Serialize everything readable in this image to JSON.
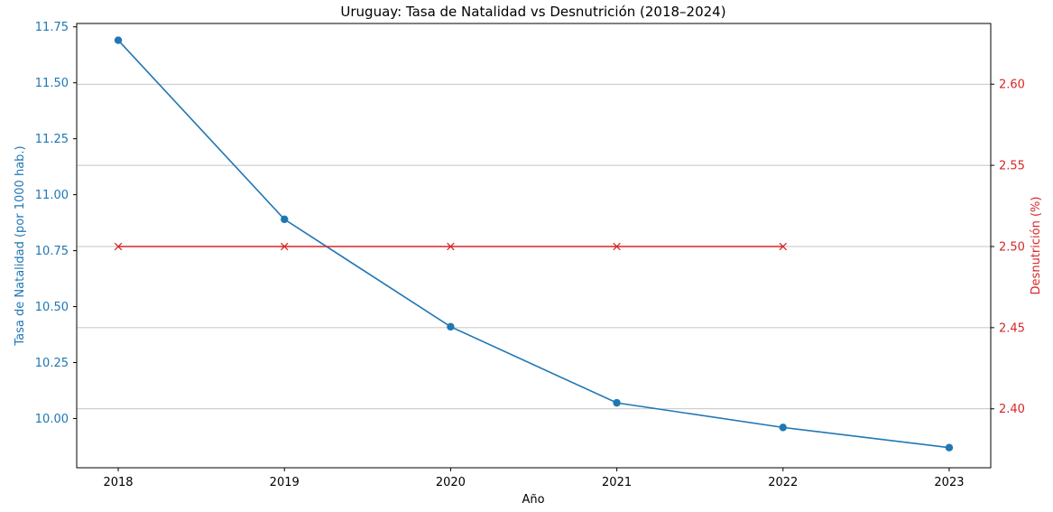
{
  "chart_data": {
    "type": "line",
    "title": "Uruguay: Tasa de Natalidad vs Desnutrición (2018–2024)",
    "xlabel": "Año",
    "ylabel_left": "Tasa de Natalidad (por 1000 hab.)",
    "ylabel_right": "Desnutrición (%)",
    "x": [
      2018,
      2019,
      2020,
      2021,
      2022,
      2023
    ],
    "x_ticks": [
      "2018",
      "2019",
      "2020",
      "2021",
      "2022",
      "2023"
    ],
    "xlim": [
      2017.75,
      2023.25
    ],
    "ylim_left": [
      9.78,
      11.765
    ],
    "ylim_right": [
      2.3637,
      2.6374
    ],
    "y_ticks_left": [
      "10.00",
      "10.25",
      "10.50",
      "10.75",
      "11.00",
      "11.25",
      "11.50",
      "11.75"
    ],
    "y_ticks_right": [
      "2.40",
      "2.45",
      "2.50",
      "2.55",
      "2.60"
    ],
    "grid": "horizontal on right axis",
    "series": [
      {
        "axis": "left",
        "marker": "circle",
        "color": "#1f77b4",
        "x": [
          2018,
          2019,
          2020,
          2021,
          2022,
          2023
        ],
        "values": [
          11.69,
          10.89,
          10.41,
          10.07,
          9.96,
          9.87
        ]
      },
      {
        "axis": "right",
        "marker": "x",
        "color": "#d62728",
        "x": [
          2018,
          2019,
          2020,
          2021,
          2022
        ],
        "values": [
          2.5,
          2.5,
          2.5,
          2.5,
          2.5
        ]
      }
    ]
  }
}
